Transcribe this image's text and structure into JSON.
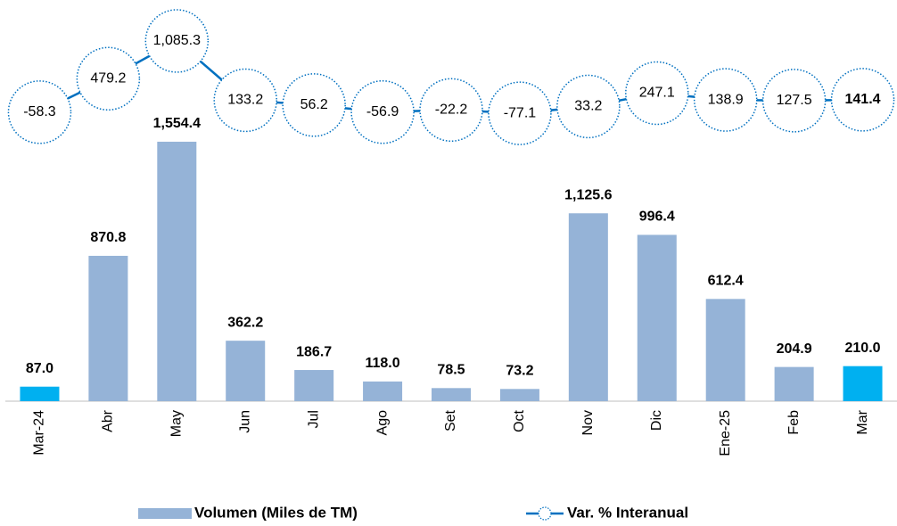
{
  "chart_data": {
    "type": "bar_line",
    "categories": [
      "Mar-24",
      "Abr",
      "May",
      "Jun",
      "Jul",
      "Ago",
      "Set",
      "Oct",
      "Nov",
      "Dic",
      "Ene-25",
      "Feb",
      "Mar"
    ],
    "series": [
      {
        "name": "Volumen (Miles de TM)",
        "type": "bar",
        "color": "#95b3d7",
        "colors": [
          "#00b0f0",
          "#95b3d7",
          "#95b3d7",
          "#95b3d7",
          "#95b3d7",
          "#95b3d7",
          "#95b3d7",
          "#95b3d7",
          "#95b3d7",
          "#95b3d7",
          "#95b3d7",
          "#95b3d7",
          "#00b0f0"
        ],
        "label_colors": [
          "#1a7fc4",
          "#000000",
          "#000000",
          "#000000",
          "#000000",
          "#000000",
          "#000000",
          "#000000",
          "#000000",
          "#000000",
          "#000000",
          "#000000",
          "#1a7fc4"
        ],
        "values": [
          87.0,
          870.8,
          1554.4,
          362.2,
          186.7,
          118.0,
          78.5,
          73.2,
          1125.6,
          996.4,
          612.4,
          204.9,
          210.0
        ],
        "value_labels": [
          "87.0",
          "870.8",
          "1,554.4",
          "362.2",
          "186.7",
          "118.0",
          "78.5",
          "73.2",
          "1,125.6",
          "996.4",
          "612.4",
          "204.9",
          "210.0"
        ]
      },
      {
        "name": "Var. % Interanual",
        "type": "line",
        "axis": "y2",
        "color": "#0070c0",
        "label_colors": [
          "#333333",
          "#333333",
          "#333333",
          "#333333",
          "#333333",
          "#333333",
          "#333333",
          "#333333",
          "#333333",
          "#333333",
          "#333333",
          "#333333",
          "#1a7fc4"
        ],
        "values": [
          -58.3,
          479.2,
          1085.3,
          133.2,
          56.2,
          -56.9,
          -22.2,
          -77.1,
          33.2,
          247.1,
          138.9,
          127.5,
          141.4
        ],
        "value_labels": [
          "-58.3",
          "479.2",
          "1,085.3",
          "133.2",
          "56.2",
          "-56.9",
          "-22.2",
          "-77.1",
          "33.2",
          "247.1",
          "138.9",
          "127.5",
          "141.4"
        ]
      }
    ],
    "ylim": [
      0,
      2350
    ],
    "y2lim": [
      -4700,
      1600
    ]
  }
}
